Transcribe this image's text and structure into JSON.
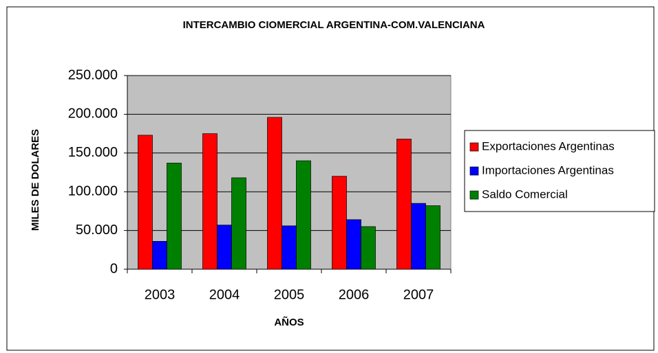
{
  "chart_data": {
    "type": "bar",
    "title": "INTERCAMBIO CIOMERCIAL ARGENTINA-COM.VALENCIANA",
    "xlabel": "AÑOS",
    "ylabel": "MILES DE DOLARES",
    "categories": [
      "2003",
      "2004",
      "2005",
      "2006",
      "2007"
    ],
    "series": [
      {
        "name": "Exportaciones Argentinas",
        "color": "#ff0000",
        "values": [
          173000,
          175000,
          196000,
          120000,
          168000
        ]
      },
      {
        "name": "Importaciones Argentinas",
        "color": "#0000ff",
        "values": [
          36000,
          57000,
          56000,
          64000,
          85000
        ]
      },
      {
        "name": "Saldo Comercial",
        "color": "#008000",
        "values": [
          137000,
          118000,
          140000,
          55000,
          82000
        ]
      }
    ],
    "ylim": [
      0,
      250000
    ],
    "yticks": [
      0,
      {
        "value": 50000,
        "label": "50.000"
      },
      {
        "value": 100000,
        "label": "100.000"
      },
      {
        "value": 150000,
        "label": "150.000"
      },
      {
        "value": 200000,
        "label": "200.000"
      },
      {
        "value": 250000,
        "label": "250.000"
      }
    ],
    "grid": true,
    "background": "#c0c0c0",
    "legend": "right"
  }
}
